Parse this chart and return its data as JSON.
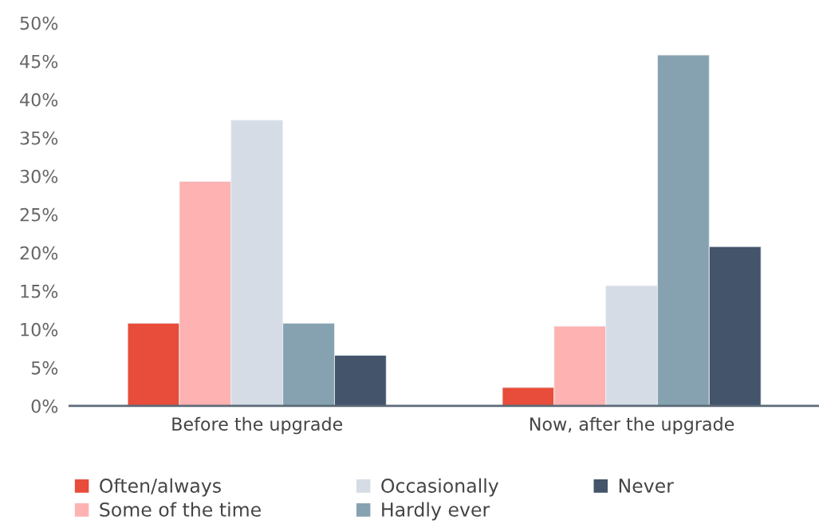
{
  "chart_data": {
    "type": "bar",
    "categories": [
      "Before the upgrade",
      "Now, after the upgrade"
    ],
    "series": [
      {
        "name": "Often/always",
        "color": "#e84c3a",
        "values": [
          10.8,
          2.4
        ]
      },
      {
        "name": "Some of the time",
        "color": "#feb2b2",
        "values": [
          29.3,
          10.4
        ]
      },
      {
        "name": "Occasionally",
        "color": "#d5dce5",
        "values": [
          37.3,
          15.7
        ]
      },
      {
        "name": "Hardly ever",
        "color": "#86a2b0",
        "values": [
          10.8,
          45.8
        ]
      },
      {
        "name": "Never",
        "color": "#43546b",
        "values": [
          6.6,
          20.8
        ]
      }
    ],
    "ylim": [
      0,
      50
    ],
    "yticks": [
      {
        "value": 0,
        "label": "0%"
      },
      {
        "value": 5,
        "label": "5%"
      },
      {
        "value": 10,
        "label": "10%"
      },
      {
        "value": 15,
        "label": "15%"
      },
      {
        "value": 20,
        "label": "20%"
      },
      {
        "value": 25,
        "label": "25%"
      },
      {
        "value": 30,
        "label": "30%"
      },
      {
        "value": 35,
        "label": "35%"
      },
      {
        "value": 40,
        "label": "40%"
      },
      {
        "value": 45,
        "label": "45%"
      },
      {
        "value": 50,
        "label": "50%"
      }
    ],
    "grid": false,
    "legend": "bottom"
  }
}
